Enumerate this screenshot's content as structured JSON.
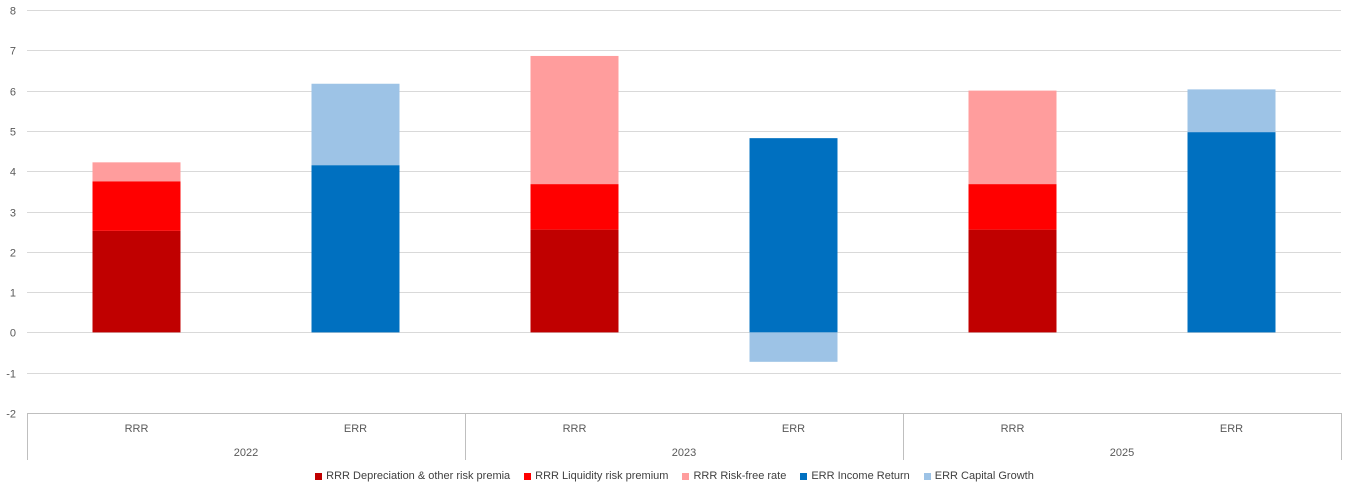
{
  "chart_data": {
    "type": "bar",
    "stacked": true,
    "title": "",
    "xlabel": "",
    "ylabel": "",
    "ylim": [
      -2,
      8
    ],
    "yticks": [
      -2,
      -1,
      0,
      1,
      2,
      3,
      4,
      5,
      6,
      7,
      8
    ],
    "grid": true,
    "legend_position": "bottom",
    "groups": [
      {
        "label": "2022",
        "categories": [
          "RRR",
          "ERR"
        ]
      },
      {
        "label": "2023",
        "categories": [
          "RRR",
          "ERR"
        ]
      },
      {
        "label": "2025",
        "categories": [
          "RRR",
          "ERR"
        ]
      }
    ],
    "categories": [
      "RRR",
      "ERR",
      "RRR",
      "ERR",
      "RRR",
      "ERR"
    ],
    "series": [
      {
        "name": "RRR Depreciation & other risk premia",
        "color": "#C00000",
        "values": [
          2.52,
          0,
          2.55,
          0,
          2.55,
          0
        ]
      },
      {
        "name": "RRR Liquidity risk premium",
        "color": "#FF0000",
        "values": [
          1.23,
          0,
          1.13,
          0,
          1.13,
          0
        ]
      },
      {
        "name": "RRR Risk-free rate",
        "color": "#FF9D9D",
        "values": [
          0.47,
          0,
          3.18,
          0,
          2.32,
          0
        ]
      },
      {
        "name": "ERR Income Return",
        "color": "#0070C0",
        "values": [
          0,
          4.15,
          0,
          4.82,
          0,
          4.97
        ]
      },
      {
        "name": "ERR Capital Growth",
        "color": "#9DC3E6",
        "values": [
          0,
          2.02,
          0,
          -0.73,
          0,
          1.06
        ]
      }
    ]
  }
}
